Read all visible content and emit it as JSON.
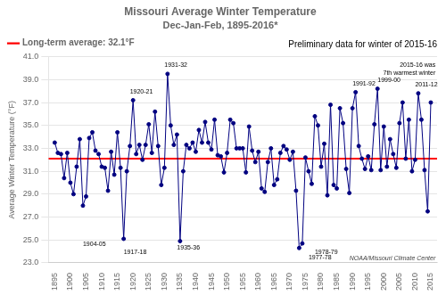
{
  "chart_data": {
    "type": "line",
    "title": "Missouri Average Winter Temperature",
    "subtitle": "Dec-Jan-Feb, 1895-2016*",
    "ylabel": "Average Winter Temperature (°F)",
    "caption": "Preliminary data for winter of 2015-16",
    "x": [
      1895,
      1896,
      1897,
      1898,
      1899,
      1900,
      1901,
      1902,
      1903,
      1904,
      1905,
      1906,
      1907,
      1908,
      1909,
      1910,
      1911,
      1912,
      1913,
      1914,
      1915,
      1916,
      1917,
      1918,
      1919,
      1920,
      1921,
      1922,
      1923,
      1924,
      1925,
      1926,
      1927,
      1928,
      1929,
      1930,
      1931,
      1932,
      1933,
      1934,
      1935,
      1936,
      1937,
      1938,
      1939,
      1940,
      1941,
      1942,
      1943,
      1944,
      1945,
      1946,
      1947,
      1948,
      1949,
      1950,
      1951,
      1952,
      1953,
      1954,
      1955,
      1956,
      1957,
      1958,
      1959,
      1960,
      1961,
      1962,
      1963,
      1964,
      1965,
      1966,
      1967,
      1968,
      1969,
      1970,
      1971,
      1972,
      1973,
      1974,
      1975,
      1976,
      1977,
      1978,
      1979,
      1980,
      1981,
      1982,
      1983,
      1984,
      1985,
      1986,
      1987,
      1988,
      1989,
      1990,
      1991,
      1992,
      1993,
      1994,
      1995,
      1996,
      1997,
      1998,
      1999,
      2000,
      2001,
      2002,
      2003,
      2004,
      2005,
      2006,
      2007,
      2008,
      2009,
      2010,
      2011,
      2012,
      2013,
      2014,
      2015
    ],
    "series": [
      {
        "color": "#000080",
        "marker": "circle",
        "values": [
          33.5,
          32.6,
          32.5,
          30.4,
          32.6,
          30.0,
          29.0,
          31.4,
          33.8,
          28.0,
          28.8,
          33.9,
          34.4,
          32.8,
          32.5,
          31.4,
          31.3,
          29.3,
          32.7,
          30.7,
          34.4,
          31.3,
          25.1,
          31.0,
          33.2,
          37.2,
          32.5,
          33.3,
          32.0,
          33.3,
          35.1,
          32.6,
          36.2,
          33.2,
          29.8,
          31.3,
          39.5,
          35.0,
          33.3,
          34.2,
          24.9,
          31.0,
          33.3,
          33.0,
          33.5,
          32.7,
          34.6,
          33.5,
          35.3,
          33.5,
          32.9,
          35.5,
          32.4,
          32.3,
          30.9,
          32.6,
          35.5,
          35.2,
          33.0,
          33.0,
          33.0,
          30.9,
          34.9,
          32.8,
          31.8,
          32.7,
          29.5,
          29.2,
          31.8,
          33.0,
          29.8,
          30.3,
          32.6,
          33.2,
          32.9,
          32.0,
          32.7,
          29.3,
          24.3,
          24.7,
          32.2,
          31.0,
          29.9,
          35.8,
          35.0,
          31.4,
          33.4,
          28.9,
          36.8,
          29.8,
          29.5,
          36.5,
          35.2,
          31.2,
          29.1,
          36.5,
          37.9,
          33.2,
          32.1,
          31.2,
          32.3,
          31.1,
          35.1,
          38.2,
          31.1,
          34.9,
          31.4,
          33.8,
          32.5,
          31.3,
          35.2,
          37.0,
          32.1,
          35.5,
          31.0,
          32.0,
          37.8,
          35.5,
          31.1,
          27.5,
          37.0
        ]
      }
    ],
    "reference_lines": [
      {
        "name": "Long-term average: 32.1°F",
        "y": 32.1,
        "color": "#FF0000"
      }
    ],
    "annotations": [
      {
        "text": "1904-05",
        "x": 1904,
        "y": 24.5
      },
      {
        "text": "1917-18",
        "x": 1917,
        "y": 23.8
      },
      {
        "text": "1935-36",
        "x": 1934,
        "y": 24.2
      },
      {
        "text": "1977-78",
        "x": 1976,
        "y": 23.3
      },
      {
        "text": "1978-79",
        "x": 1978,
        "y": 23.8
      },
      {
        "text": "1920-21",
        "x": 1919,
        "y": 37.8
      },
      {
        "text": "1931-32",
        "x": 1930,
        "y": 40.1
      },
      {
        "text": "1991-92",
        "x": 1990,
        "y": 38.5
      },
      {
        "text": "1999-00",
        "x": 1998,
        "y": 38.8
      },
      {
        "text": "2011-12",
        "x": 2010,
        "y": 38.4
      }
    ],
    "note": {
      "text": "2015-16 was\n7th warmest winter",
      "x": 2016.5,
      "y": 40.5
    },
    "credit": {
      "text": "NOAA/Missouri Climate Center",
      "x": 2016.5,
      "y": 23.0
    },
    "xlim": [
      1893,
      2017
    ],
    "xticks": [
      1895,
      1900,
      1905,
      1910,
      1915,
      1920,
      1925,
      1930,
      1935,
      1940,
      1945,
      1950,
      1955,
      1960,
      1965,
      1970,
      1975,
      1980,
      1985,
      1990,
      1995,
      2000,
      2005,
      2010,
      2015
    ],
    "ylim": [
      23.0,
      41.0
    ],
    "yticks": [
      {
        "value": 23.0,
        "label": "23.0"
      },
      {
        "value": 25.0,
        "label": "25.0"
      },
      {
        "value": 27.0,
        "label": "27.0"
      },
      {
        "value": 29.0,
        "label": "29.0"
      },
      {
        "value": 31.0,
        "label": "31.0"
      },
      {
        "value": 33.0,
        "label": "33.0"
      },
      {
        "value": 35.0,
        "label": "35.0"
      },
      {
        "value": 37.0,
        "label": "37.0"
      },
      {
        "value": 39.0,
        "label": "39.0"
      },
      {
        "value": 41.0,
        "label": "41.0"
      }
    ],
    "grid": "y"
  }
}
